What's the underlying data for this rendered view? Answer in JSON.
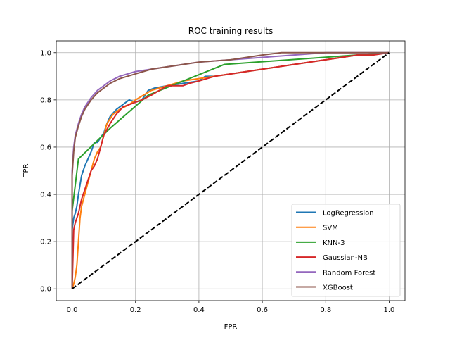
{
  "chart_data": {
    "type": "line",
    "title": "ROC training results",
    "xlabel": "FPR",
    "ylabel": "TPR",
    "xlim": [
      -0.05,
      1.05
    ],
    "ylim": [
      -0.05,
      1.05
    ],
    "xticks": [
      0.0,
      0.2,
      0.4,
      0.6,
      0.8,
      1.0
    ],
    "yticks": [
      0.0,
      0.2,
      0.4,
      0.6,
      0.8,
      1.0
    ],
    "xtick_labels": [
      "0.0",
      "0.2",
      "0.4",
      "0.6",
      "0.8",
      "1.0"
    ],
    "ytick_labels": [
      "0.0",
      "0.2",
      "0.4",
      "0.6",
      "0.8",
      "1.0"
    ],
    "grid": true,
    "legend_position": "lower-right",
    "series": [
      {
        "name": "LogRegression",
        "color": "#1f77b4",
        "x": [
          0.0,
          0.0,
          0.005,
          0.01,
          0.015,
          0.02,
          0.03,
          0.04,
          0.05,
          0.06,
          0.07,
          0.08,
          0.09,
          0.1,
          0.11,
          0.12,
          0.14,
          0.16,
          0.18,
          0.2,
          0.22,
          0.24,
          0.26,
          0.3,
          0.35,
          0.4,
          0.42,
          0.45,
          0.5,
          0.55,
          0.6,
          0.7,
          0.8,
          0.9,
          1.0
        ],
        "y": [
          0.0,
          0.25,
          0.3,
          0.32,
          0.35,
          0.4,
          0.48,
          0.52,
          0.55,
          0.58,
          0.62,
          0.62,
          0.64,
          0.66,
          0.7,
          0.73,
          0.76,
          0.78,
          0.8,
          0.79,
          0.8,
          0.84,
          0.85,
          0.86,
          0.87,
          0.88,
          0.9,
          0.9,
          0.91,
          0.92,
          0.93,
          0.95,
          0.97,
          0.99,
          1.0
        ]
      },
      {
        "name": "SVM",
        "color": "#ff7f0e",
        "x": [
          0.0,
          0.005,
          0.01,
          0.015,
          0.02,
          0.025,
          0.03,
          0.04,
          0.05,
          0.06,
          0.07,
          0.08,
          0.09,
          0.1,
          0.11,
          0.13,
          0.15,
          0.18,
          0.2,
          0.25,
          0.3,
          0.35,
          0.4,
          0.5,
          0.6,
          0.7,
          0.8,
          0.9,
          1.0
        ],
        "y": [
          0.0,
          0.02,
          0.05,
          0.1,
          0.2,
          0.3,
          0.35,
          0.4,
          0.45,
          0.5,
          0.55,
          0.58,
          0.6,
          0.65,
          0.7,
          0.74,
          0.76,
          0.78,
          0.8,
          0.84,
          0.86,
          0.88,
          0.89,
          0.91,
          0.93,
          0.95,
          0.97,
          0.99,
          1.0
        ]
      },
      {
        "name": "KNN-3",
        "color": "#2ca02c",
        "x": [
          0.0,
          0.0,
          0.02,
          0.12,
          0.24,
          0.48,
          1.0
        ],
        "y": [
          0.0,
          0.33,
          0.55,
          0.68,
          0.82,
          0.95,
          1.0
        ]
      },
      {
        "name": "Gaussian-NB",
        "color": "#d62728",
        "x": [
          0.0,
          0.005,
          0.01,
          0.02,
          0.03,
          0.04,
          0.05,
          0.06,
          0.07,
          0.08,
          0.09,
          0.1,
          0.12,
          0.14,
          0.16,
          0.18,
          0.2,
          0.22,
          0.25,
          0.3,
          0.35,
          0.37,
          0.4,
          0.45,
          0.5,
          0.6,
          0.7,
          0.8,
          0.85,
          0.9,
          0.95,
          1.0
        ],
        "y": [
          0.0,
          0.25,
          0.28,
          0.32,
          0.38,
          0.42,
          0.46,
          0.5,
          0.52,
          0.55,
          0.6,
          0.65,
          0.7,
          0.74,
          0.77,
          0.78,
          0.79,
          0.8,
          0.82,
          0.86,
          0.86,
          0.87,
          0.88,
          0.9,
          0.91,
          0.93,
          0.95,
          0.97,
          0.98,
          0.99,
          0.99,
          1.0
        ]
      },
      {
        "name": "Random Forest",
        "color": "#9467bd",
        "x": [
          0.0,
          0.0,
          0.005,
          0.01,
          0.02,
          0.03,
          0.04,
          0.05,
          0.06,
          0.08,
          0.1,
          0.12,
          0.15,
          0.2,
          0.25,
          0.3,
          0.35,
          0.4,
          0.5,
          0.6,
          0.7,
          0.8,
          0.9,
          1.0
        ],
        "y": [
          0.0,
          0.5,
          0.6,
          0.65,
          0.7,
          0.74,
          0.77,
          0.79,
          0.81,
          0.84,
          0.86,
          0.88,
          0.9,
          0.92,
          0.93,
          0.94,
          0.95,
          0.96,
          0.97,
          0.98,
          0.99,
          1.0,
          1.0,
          1.0
        ]
      },
      {
        "name": "XGBoost",
        "color": "#8c564b",
        "x": [
          0.0,
          0.0,
          0.005,
          0.01,
          0.02,
          0.03,
          0.04,
          0.05,
          0.06,
          0.08,
          0.1,
          0.12,
          0.15,
          0.2,
          0.25,
          0.3,
          0.35,
          0.4,
          0.5,
          0.6,
          0.66,
          0.8,
          0.9,
          1.0
        ],
        "y": [
          0.0,
          0.48,
          0.58,
          0.64,
          0.69,
          0.73,
          0.76,
          0.78,
          0.8,
          0.83,
          0.85,
          0.87,
          0.89,
          0.91,
          0.93,
          0.94,
          0.95,
          0.96,
          0.97,
          0.99,
          1.0,
          1.0,
          1.0,
          1.0
        ]
      }
    ],
    "reference_line": {
      "color": "#000000",
      "style": "dashed",
      "x": [
        0.0,
        1.0
      ],
      "y": [
        0.0,
        1.0
      ]
    }
  }
}
